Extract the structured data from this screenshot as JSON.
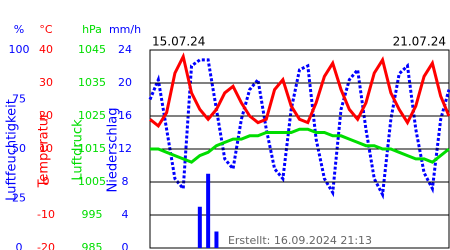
{
  "chart_data": {
    "type": "multi-axis",
    "date_start": "15.07.24",
    "date_end": "21.07.24",
    "footer": "Erstellt: 16.09.2024 21:13",
    "axes": [
      {
        "type": "line",
        "name": "Luftfeuchtigkeit",
        "unit": "%",
        "color": "#0000ff",
        "ylim": [
          0,
          100
        ],
        "yticks": [
          0,
          25,
          50,
          75,
          100
        ],
        "values": [
          75,
          85,
          60,
          35,
          30,
          92,
          95,
          95,
          70,
          45,
          40,
          65,
          80,
          85,
          60,
          40,
          35,
          70,
          90,
          92,
          55,
          35,
          28,
          70,
          85,
          90,
          60,
          35,
          27,
          65,
          88,
          92,
          60,
          38,
          30,
          65,
          80
        ]
      },
      {
        "type": "line",
        "name": "Temperatur",
        "unit": "°C",
        "color": "#ff0000",
        "ylim": [
          -20,
          40
        ],
        "yticks": [
          -20,
          -10,
          0,
          10,
          20,
          30,
          40
        ],
        "values": [
          19,
          17,
          21,
          33,
          38,
          27,
          22,
          19,
          22,
          27,
          29,
          24,
          20,
          18,
          19,
          28,
          31,
          23,
          19,
          18,
          24,
          32,
          36,
          28,
          22,
          19,
          24,
          33,
          37,
          27,
          22,
          18,
          23,
          32,
          36,
          26,
          20
        ]
      },
      {
        "type": "line",
        "name": "Luftdruck",
        "unit": "hPa",
        "color": "#00dd00",
        "ylim": [
          985,
          1045
        ],
        "yticks": [
          985,
          995,
          1005,
          1015,
          1025,
          1035,
          1045
        ],
        "values": [
          1015,
          1015,
          1014,
          1013,
          1012,
          1011,
          1013,
          1014,
          1016,
          1017,
          1018,
          1018,
          1019,
          1019,
          1020,
          1020,
          1020,
          1020,
          1021,
          1021,
          1020,
          1020,
          1019,
          1019,
          1018,
          1017,
          1016,
          1016,
          1015,
          1015,
          1014,
          1013,
          1012,
          1012,
          1011,
          1013,
          1015
        ]
      },
      {
        "type": "bar",
        "name": "Niederschlag",
        "unit": "mm/h",
        "color": "#0000ff",
        "ylim": [
          0,
          24
        ],
        "yticks": [
          0,
          4,
          8,
          12,
          16,
          20,
          24
        ],
        "values": [
          0,
          0,
          0,
          0,
          0,
          0,
          5,
          9,
          2,
          0,
          0,
          0,
          0,
          0,
          0,
          0,
          0,
          0,
          0,
          0,
          0,
          0,
          0,
          0,
          0,
          0,
          0,
          0,
          0,
          0,
          0,
          0,
          0,
          0,
          0,
          0,
          0
        ]
      }
    ]
  }
}
